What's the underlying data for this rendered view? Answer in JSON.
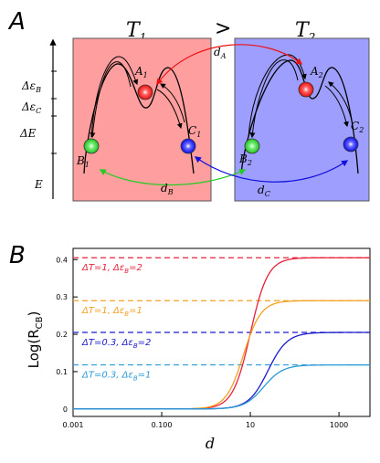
{
  "panel_a": {
    "letter": "A",
    "temp_left": "T",
    "temp_left_sub": "1",
    "compare": ">",
    "temp_right": "T",
    "temp_right_sub": "2",
    "energy_axis": {
      "labels": [
        {
          "main": "Δε",
          "sub": "B"
        },
        {
          "main": "Δε",
          "sub": "C"
        },
        {
          "main": "ΔE",
          "sub": ""
        },
        {
          "main": "E",
          "sub": ""
        }
      ]
    },
    "state_labels": {
      "A1": {
        "main": "A",
        "sub": "1"
      },
      "B1": {
        "main": "B",
        "sub": "1"
      },
      "C1": {
        "main": "C",
        "sub": "1"
      },
      "A2": {
        "main": "A",
        "sub": "2"
      },
      "B2": {
        "main": "B",
        "sub": "2"
      },
      "C2": {
        "main": "C",
        "sub": "2"
      }
    },
    "distance_labels": {
      "dA": {
        "main": "d",
        "sub": "A"
      },
      "dB": {
        "main": "d",
        "sub": "B"
      },
      "dC": {
        "main": "d",
        "sub": "C"
      }
    },
    "colors": {
      "left_box": "#ff9e9e",
      "right_box": "#9e9eff",
      "state_A": "#ff1a1a",
      "state_B": "#22cc22",
      "state_C": "#1a1aff",
      "arrow_dA": "#ee1111",
      "arrow_dB": "#22cc22",
      "arrow_dC": "#1111dd"
    }
  },
  "panel_b": {
    "letter": "B",
    "chart_data": {
      "type": "line",
      "xlabel": "d",
      "ylabel_main": "Log(R",
      "ylabel_sub": "CB",
      "ylabel_close": ")",
      "x_scale": "log",
      "xlim": [
        0.001,
        5000
      ],
      "ylim": [
        -0.02,
        0.43
      ],
      "x_ticks": [
        {
          "value": 0.001,
          "label": "0.001"
        },
        {
          "value": 0.1,
          "label": "0.100"
        },
        {
          "value": 10,
          "label": "10"
        },
        {
          "value": 1000,
          "label": "1000"
        }
      ],
      "y_ticks": [
        {
          "value": 0,
          "label": "0"
        },
        {
          "value": 0.1,
          "label": "0.1"
        },
        {
          "value": 0.2,
          "label": "0.2"
        },
        {
          "value": 0.3,
          "label": "0.3"
        },
        {
          "value": 0.4,
          "label": "0.4"
        }
      ],
      "grid": false,
      "series": [
        {
          "name": "ΔT=1, Δε_B=2",
          "label_text": "ΔT=1, Δε",
          "label_sub": "B",
          "label_end": "=2",
          "color": "#e8203a",
          "asymptote": 0.405,
          "midpoint": 10,
          "steepness": 2.2
        },
        {
          "name": "ΔT=1, Δε_B=1",
          "label_text": "ΔT=1, Δε",
          "label_sub": "B",
          "label_end": "=1",
          "color": "#f5a020",
          "asymptote": 0.29,
          "midpoint": 7,
          "steepness": 2.2
        },
        {
          "name": "ΔT=0.3, Δε_B=2",
          "label_text": "ΔT=0.3, Δε",
          "label_sub": "B",
          "label_end": "=2",
          "color": "#1a1acc",
          "asymptote": 0.205,
          "midpoint": 25,
          "steepness": 2.0
        },
        {
          "name": "ΔT=0.3, Δε_B=1",
          "label_text": "ΔT=0.3, Δε",
          "label_sub": "B",
          "label_end": "=1",
          "color": "#2a9ad8",
          "asymptote": 0.118,
          "midpoint": 20,
          "steepness": 2.0
        }
      ]
    }
  }
}
